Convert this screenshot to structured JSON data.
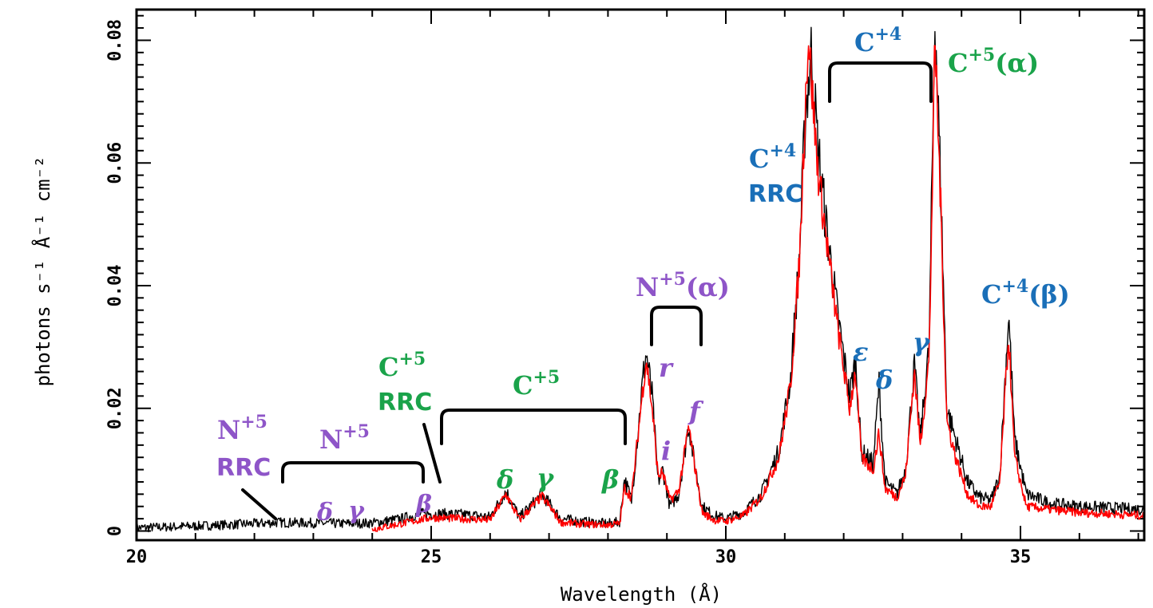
{
  "chart_data": {
    "type": "line",
    "xlabel": "Wavelength (Å)",
    "ylabel": "photons s⁻¹ Å⁻¹ cm⁻²",
    "xlim": [
      20,
      37.1
    ],
    "ylim": [
      -0.0015,
      0.085
    ],
    "x_ticks": [
      20,
      25,
      30,
      35
    ],
    "y_ticks": [
      0,
      0.02,
      0.04,
      0.06,
      0.08
    ],
    "x_tick_labels": [
      "20",
      "25",
      "30",
      "35"
    ],
    "y_tick_labels": [
      "0",
      "0.02",
      "0.04",
      "0.06",
      "0.08"
    ],
    "grid": false,
    "colors": {
      "data": "#000000",
      "model": "#ff0000",
      "nitrogen": "#8e55c8",
      "carbon5": "#1aa34a",
      "carbon4": "#1a6fb8"
    },
    "series": [
      {
        "color": "#000000",
        "points": [
          [
            20,
            0.0005
          ],
          [
            21,
            0.0008
          ],
          [
            22,
            0.0012
          ],
          [
            22.4,
            0.0014
          ],
          [
            23,
            0.0013
          ],
          [
            23.5,
            0.0012
          ],
          [
            24,
            0.0013
          ],
          [
            24.5,
            0.002
          ],
          [
            24.8,
            0.0028
          ],
          [
            25,
            0.0028
          ],
          [
            25.5,
            0.0027
          ],
          [
            26,
            0.0023
          ],
          [
            26.27,
            0.0065
          ],
          [
            26.5,
            0.0022
          ],
          [
            26.88,
            0.006
          ],
          [
            27.2,
            0.002
          ],
          [
            27.6,
            0.0015
          ],
          [
            28,
            0.0012
          ],
          [
            28.2,
            0.0015
          ],
          [
            28.28,
            0.0085
          ],
          [
            28.4,
            0.005
          ],
          [
            28.6,
            0.0255
          ],
          [
            28.65,
            0.029
          ],
          [
            28.75,
            0.022
          ],
          [
            28.85,
            0.008
          ],
          [
            28.93,
            0.01
          ],
          [
            29.05,
            0.004
          ],
          [
            29.2,
            0.006
          ],
          [
            29.37,
            0.0175
          ],
          [
            29.45,
            0.012
          ],
          [
            29.6,
            0.004
          ],
          [
            29.8,
            0.0025
          ],
          [
            30,
            0.002
          ],
          [
            30.3,
            0.003
          ],
          [
            30.6,
            0.006
          ],
          [
            30.9,
            0.013
          ],
          [
            31.1,
            0.025
          ],
          [
            31.25,
            0.045
          ],
          [
            31.35,
            0.068
          ],
          [
            31.45,
            0.078
          ],
          [
            31.55,
            0.064
          ],
          [
            31.7,
            0.05
          ],
          [
            31.9,
            0.035
          ],
          [
            32.1,
            0.022
          ],
          [
            32.2,
            0.028
          ],
          [
            32.3,
            0.013
          ],
          [
            32.5,
            0.011
          ],
          [
            32.6,
            0.024
          ],
          [
            32.7,
            0.008
          ],
          [
            32.9,
            0.006
          ],
          [
            33.05,
            0.01
          ],
          [
            33.2,
            0.027
          ],
          [
            33.3,
            0.015
          ],
          [
            33.45,
            0.03
          ],
          [
            33.55,
            0.085
          ],
          [
            33.65,
            0.055
          ],
          [
            33.75,
            0.02
          ],
          [
            33.9,
            0.015
          ],
          [
            34.1,
            0.008
          ],
          [
            34.3,
            0.0055
          ],
          [
            34.5,
            0.005
          ],
          [
            34.65,
            0.009
          ],
          [
            34.8,
            0.0355
          ],
          [
            34.9,
            0.015
          ],
          [
            35.1,
            0.006
          ],
          [
            35.5,
            0.0045
          ],
          [
            36,
            0.004
          ],
          [
            36.5,
            0.0038
          ],
          [
            37.1,
            0.0035
          ]
        ]
      },
      {
        "color": "#ff0000",
        "points": [
          [
            24,
            0.0003
          ],
          [
            24.5,
            0.0012
          ],
          [
            24.8,
            0.0018
          ],
          [
            25,
            0.0022
          ],
          [
            25.5,
            0.002
          ],
          [
            26,
            0.0018
          ],
          [
            26.27,
            0.006
          ],
          [
            26.5,
            0.0018
          ],
          [
            26.88,
            0.0057
          ],
          [
            27.2,
            0.0014
          ],
          [
            27.6,
            0.0011
          ],
          [
            28,
            0.001
          ],
          [
            28.2,
            0.0012
          ],
          [
            28.28,
            0.007
          ],
          [
            28.4,
            0.0055
          ],
          [
            28.6,
            0.024
          ],
          [
            28.65,
            0.028
          ],
          [
            28.75,
            0.02
          ],
          [
            28.85,
            0.009
          ],
          [
            28.93,
            0.0095
          ],
          [
            29.05,
            0.005
          ],
          [
            29.2,
            0.0065
          ],
          [
            29.37,
            0.017
          ],
          [
            29.45,
            0.012
          ],
          [
            29.6,
            0.003
          ],
          [
            29.8,
            0.0018
          ],
          [
            30,
            0.0016
          ],
          [
            30.3,
            0.0025
          ],
          [
            30.6,
            0.0055
          ],
          [
            30.9,
            0.012
          ],
          [
            31.1,
            0.024
          ],
          [
            31.25,
            0.044
          ],
          [
            31.35,
            0.07
          ],
          [
            31.4,
            0.081
          ],
          [
            31.55,
            0.06
          ],
          [
            31.7,
            0.048
          ],
          [
            31.9,
            0.033
          ],
          [
            32.1,
            0.02
          ],
          [
            32.2,
            0.026
          ],
          [
            32.3,
            0.012
          ],
          [
            32.5,
            0.01
          ],
          [
            32.6,
            0.016
          ],
          [
            32.7,
            0.007
          ],
          [
            32.9,
            0.0055
          ],
          [
            33.05,
            0.009
          ],
          [
            33.2,
            0.026
          ],
          [
            33.3,
            0.014
          ],
          [
            33.45,
            0.028
          ],
          [
            33.55,
            0.08
          ],
          [
            33.65,
            0.052
          ],
          [
            33.75,
            0.018
          ],
          [
            33.9,
            0.012
          ],
          [
            34.1,
            0.006
          ],
          [
            34.3,
            0.004
          ],
          [
            34.5,
            0.004
          ],
          [
            34.65,
            0.008
          ],
          [
            34.8,
            0.032
          ],
          [
            34.9,
            0.012
          ],
          [
            35.1,
            0.004
          ],
          [
            35.5,
            0.0035
          ],
          [
            36,
            0.003
          ],
          [
            36.5,
            0.0028
          ],
          [
            37.1,
            0.0025
          ]
        ]
      }
    ],
    "annotations": [
      {
        "text": "N+5 RRC",
        "color_key": "nitrogen"
      },
      {
        "text": "N+5",
        "color_key": "nitrogen"
      },
      {
        "text": "δ",
        "color_key": "nitrogen"
      },
      {
        "text": "γ",
        "color_key": "nitrogen"
      },
      {
        "text": "β",
        "color_key": "nitrogen"
      },
      {
        "text": "C+5 RRC",
        "color_key": "carbon5"
      },
      {
        "text": "C+5",
        "color_key": "carbon5"
      },
      {
        "text": "δ",
        "color_key": "carbon5"
      },
      {
        "text": "γ",
        "color_key": "carbon5"
      },
      {
        "text": "β",
        "color_key": "carbon5"
      },
      {
        "text": "N+5(α)",
        "color_key": "nitrogen"
      },
      {
        "text": "r",
        "color_key": "nitrogen"
      },
      {
        "text": "i",
        "color_key": "nitrogen"
      },
      {
        "text": "f",
        "color_key": "nitrogen"
      },
      {
        "text": "C+4 RRC",
        "color_key": "carbon4"
      },
      {
        "text": "C+4",
        "color_key": "carbon4"
      },
      {
        "text": "ε",
        "color_key": "carbon4"
      },
      {
        "text": "δ",
        "color_key": "carbon4"
      },
      {
        "text": "γ",
        "color_key": "carbon4"
      },
      {
        "text": "C+5(α)",
        "color_key": "carbon5"
      },
      {
        "text": "C+4(β)",
        "color_key": "carbon4"
      }
    ]
  },
  "labels": {
    "n5_rrc_ion": "N",
    "n5_rrc_charge": "+5",
    "n5_rrc_word": "RRC",
    "n5_ion": "N",
    "n5_charge": "+5",
    "n5_delta": "δ",
    "n5_gamma": "γ",
    "n5_beta": "β",
    "c5_rrc_ion": "C",
    "c5_rrc_charge": "+5",
    "c5_rrc_word": "RRC",
    "c5_ion": "C",
    "c5_charge": "+5",
    "c5_delta": "δ",
    "c5_gamma": "γ",
    "c5_beta": "β",
    "n5a_ion": "N",
    "n5a_charge": "+5",
    "n5a_line": "(α)",
    "n5_r": "r",
    "n5_i": "i",
    "n5_f": "f",
    "c4_rrc_ion": "C",
    "c4_rrc_charge": "+4",
    "c4_rrc_word": "RRC",
    "c4_ion": "C",
    "c4_charge": "+4",
    "c4_eps": "ε",
    "c4_delta": "δ",
    "c4_gamma": "γ",
    "c5a_ion": "C",
    "c5a_charge": "+5",
    "c5a_line": "(α)",
    "c4b_ion": "C",
    "c4b_charge": "+4",
    "c4b_line": "(β)"
  }
}
